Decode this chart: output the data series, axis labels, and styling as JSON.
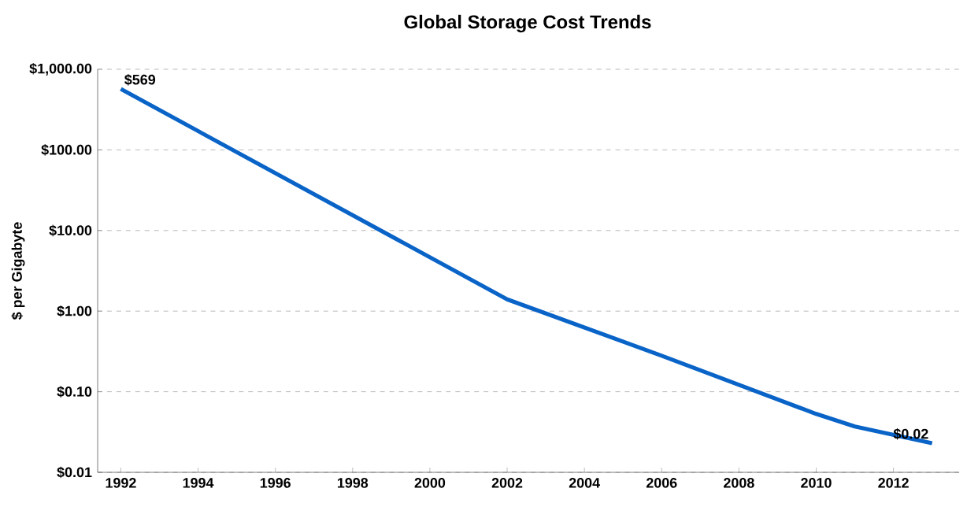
{
  "chart_data": {
    "type": "line",
    "title": "Global Storage Cost Trends",
    "ylabel": "$ per Gigabyte",
    "x": [
      1992,
      2002,
      2006,
      2010,
      2011,
      2013
    ],
    "series": [
      {
        "color": "#0a64c8",
        "values": [
          569,
          1.4,
          0.28,
          0.053,
          0.037,
          0.023
        ],
        "value_labels": [
          "$569",
          null,
          null,
          null,
          null,
          "$0.02"
        ]
      }
    ],
    "log": "y",
    "grid": "y",
    "line_style": "solid",
    "xlim": [
      1991.4,
      2013.7
    ],
    "xticks": [
      1992,
      1994,
      1996,
      1998,
      2000,
      2002,
      2004,
      2006,
      2008,
      2010,
      2012
    ],
    "ylim": [
      0.01,
      1000
    ],
    "yticks": [
      {
        "value": 0.01,
        "label": "$0.01"
      },
      {
        "value": 0.1,
        "label": "$0.10"
      },
      {
        "value": 1,
        "label": "$1.00"
      },
      {
        "value": 10,
        "label": "$10.00"
      },
      {
        "value": 100,
        "label": "$100.00"
      },
      {
        "value": 1000,
        "label": "$1,000.00"
      }
    ]
  }
}
